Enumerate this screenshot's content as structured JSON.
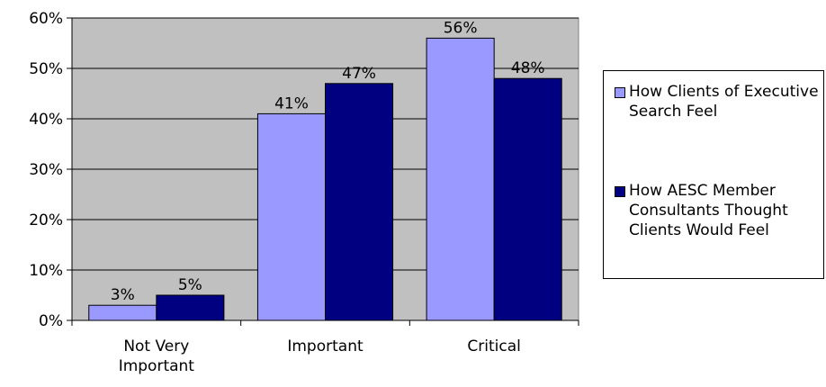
{
  "chart_data": {
    "type": "bar",
    "categories": [
      "Not Very Important",
      "Important",
      "Critical"
    ],
    "category_tick_labels": [
      [
        "Not Very",
        "Important"
      ],
      [
        "Important"
      ],
      [
        "Critical"
      ]
    ],
    "series": [
      {
        "name": "How Clients of Executive Search Feel",
        "values": [
          3,
          41,
          56
        ],
        "labels": [
          "3%",
          "41%",
          "56%"
        ],
        "color": "#9999ff"
      },
      {
        "name": "How AESC Member Consultants Thought Clients Would Feel",
        "values": [
          5,
          47,
          48
        ],
        "labels": [
          "5%",
          "47%",
          "48%"
        ],
        "color": "#000080"
      }
    ],
    "ylim": [
      0,
      60
    ],
    "yticks": [
      0,
      10,
      20,
      30,
      40,
      50,
      60
    ],
    "ytick_labels": [
      "0%",
      "10%",
      "20%",
      "30%",
      "40%",
      "50%",
      "60%"
    ],
    "title": "",
    "xlabel": "",
    "ylabel": "",
    "grid": true,
    "plot_background": "#c0c0c0",
    "legend_position": "right"
  },
  "legend": {
    "items": [
      {
        "label": "How Clients of Executive Search Feel",
        "color": "#9999ff"
      },
      {
        "label": "How AESC Member Consultants Thought Clients Would Feel",
        "color": "#000080"
      }
    ]
  }
}
